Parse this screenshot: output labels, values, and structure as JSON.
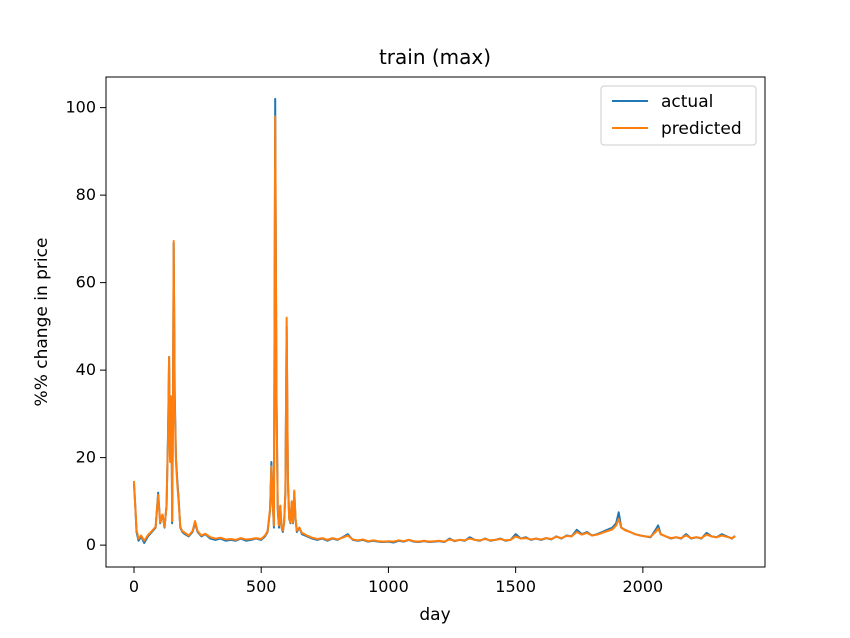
{
  "chart_data": {
    "type": "line",
    "title": "train (max)",
    "xlabel": "day",
    "ylabel": "%% change in price",
    "xlim": [
      -110,
      2480
    ],
    "ylim": [
      -5,
      107
    ],
    "xticks": [
      0,
      500,
      1000,
      1500,
      2000
    ],
    "yticks": [
      0,
      20,
      40,
      60,
      80,
      100
    ],
    "grid": false,
    "legend": "top-right",
    "series": [
      {
        "name": "actual",
        "color": "#1f77b4",
        "points": [
          [
            0,
            14
          ],
          [
            5,
            9
          ],
          [
            10,
            3
          ],
          [
            18,
            1
          ],
          [
            28,
            2
          ],
          [
            40,
            0.5
          ],
          [
            55,
            2
          ],
          [
            70,
            3
          ],
          [
            85,
            4
          ],
          [
            95,
            12
          ],
          [
            103,
            5
          ],
          [
            112,
            7
          ],
          [
            120,
            4
          ],
          [
            128,
            9
          ],
          [
            134,
            26
          ],
          [
            138,
            43
          ],
          [
            142,
            20
          ],
          [
            147,
            34
          ],
          [
            150,
            5
          ],
          [
            153,
            29
          ],
          [
            156,
            69
          ],
          [
            160,
            35
          ],
          [
            165,
            20
          ],
          [
            170,
            15
          ],
          [
            176,
            10
          ],
          [
            182,
            4
          ],
          [
            190,
            3
          ],
          [
            200,
            2.5
          ],
          [
            215,
            2
          ],
          [
            230,
            3
          ],
          [
            240,
            5
          ],
          [
            250,
            3
          ],
          [
            265,
            2
          ],
          [
            280,
            2.5
          ],
          [
            300,
            1.5
          ],
          [
            320,
            1.2
          ],
          [
            340,
            1.5
          ],
          [
            360,
            1
          ],
          [
            380,
            1.2
          ],
          [
            400,
            1
          ],
          [
            420,
            1.5
          ],
          [
            440,
            1
          ],
          [
            460,
            1.2
          ],
          [
            480,
            1.5
          ],
          [
            500,
            1.2
          ],
          [
            515,
            2
          ],
          [
            525,
            3
          ],
          [
            535,
            8
          ],
          [
            540,
            19
          ],
          [
            545,
            10
          ],
          [
            550,
            4
          ],
          [
            555,
            102
          ],
          [
            560,
            35
          ],
          [
            565,
            8
          ],
          [
            570,
            4
          ],
          [
            575,
            9
          ],
          [
            580,
            4
          ],
          [
            585,
            3
          ],
          [
            590,
            5
          ],
          [
            595,
            12
          ],
          [
            600,
            50
          ],
          [
            605,
            15
          ],
          [
            610,
            6
          ],
          [
            615,
            5
          ],
          [
            620,
            10
          ],
          [
            625,
            5
          ],
          [
            630,
            12
          ],
          [
            635,
            6
          ],
          [
            640,
            3
          ],
          [
            650,
            4
          ],
          [
            660,
            2.5
          ],
          [
            680,
            2
          ],
          [
            700,
            1.5
          ],
          [
            720,
            1.2
          ],
          [
            740,
            1.5
          ],
          [
            760,
            1
          ],
          [
            780,
            1.5
          ],
          [
            800,
            1.2
          ],
          [
            820,
            1.8
          ],
          [
            840,
            2.5
          ],
          [
            860,
            1.2
          ],
          [
            880,
            1
          ],
          [
            900,
            1.2
          ],
          [
            920,
            0.8
          ],
          [
            940,
            1
          ],
          [
            960,
            0.8
          ],
          [
            980,
            0.7
          ],
          [
            1000,
            0.8
          ],
          [
            1020,
            0.6
          ],
          [
            1040,
            1
          ],
          [
            1060,
            0.8
          ],
          [
            1080,
            1.2
          ],
          [
            1100,
            0.8
          ],
          [
            1120,
            0.7
          ],
          [
            1140,
            0.9
          ],
          [
            1160,
            0.7
          ],
          [
            1180,
            0.8
          ],
          [
            1200,
            0.9
          ],
          [
            1220,
            0.7
          ],
          [
            1240,
            1.5
          ],
          [
            1260,
            0.9
          ],
          [
            1280,
            1.2
          ],
          [
            1300,
            1
          ],
          [
            1320,
            1.8
          ],
          [
            1340,
            1.2
          ],
          [
            1360,
            1
          ],
          [
            1380,
            1.5
          ],
          [
            1400,
            1
          ],
          [
            1420,
            1.2
          ],
          [
            1440,
            1.5
          ],
          [
            1460,
            1
          ],
          [
            1480,
            1.2
          ],
          [
            1500,
            2.5
          ],
          [
            1520,
            1.5
          ],
          [
            1540,
            1.8
          ],
          [
            1560,
            1.2
          ],
          [
            1580,
            1.5
          ],
          [
            1600,
            1.2
          ],
          [
            1620,
            1.6
          ],
          [
            1640,
            1.3
          ],
          [
            1660,
            2
          ],
          [
            1680,
            1.5
          ],
          [
            1700,
            2.2
          ],
          [
            1720,
            2
          ],
          [
            1740,
            3.5
          ],
          [
            1760,
            2.5
          ],
          [
            1780,
            3
          ],
          [
            1800,
            2.2
          ],
          [
            1820,
            2.5
          ],
          [
            1840,
            3
          ],
          [
            1860,
            3.5
          ],
          [
            1880,
            4
          ],
          [
            1895,
            5
          ],
          [
            1905,
            7.5
          ],
          [
            1915,
            4
          ],
          [
            1930,
            3.5
          ],
          [
            1950,
            3
          ],
          [
            1970,
            2.5
          ],
          [
            1990,
            2.2
          ],
          [
            2010,
            2
          ],
          [
            2030,
            1.8
          ],
          [
            2050,
            3.5
          ],
          [
            2060,
            4.5
          ],
          [
            2070,
            2.5
          ],
          [
            2090,
            2
          ],
          [
            2110,
            1.5
          ],
          [
            2130,
            1.8
          ],
          [
            2150,
            1.5
          ],
          [
            2170,
            2.5
          ],
          [
            2190,
            1.5
          ],
          [
            2210,
            1.8
          ],
          [
            2230,
            1.5
          ],
          [
            2250,
            2.8
          ],
          [
            2270,
            2
          ],
          [
            2290,
            1.8
          ],
          [
            2310,
            2.5
          ],
          [
            2330,
            2
          ],
          [
            2350,
            1.5
          ],
          [
            2360,
            2
          ]
        ]
      },
      {
        "name": "predicted",
        "color": "#ff7f0e",
        "points": [
          [
            0,
            14.5
          ],
          [
            5,
            9
          ],
          [
            10,
            3.5
          ],
          [
            18,
            1.5
          ],
          [
            28,
            2.2
          ],
          [
            40,
            1
          ],
          [
            55,
            2.3
          ],
          [
            70,
            3.2
          ],
          [
            85,
            4.2
          ],
          [
            95,
            11.5
          ],
          [
            103,
            5.2
          ],
          [
            112,
            7
          ],
          [
            120,
            4.2
          ],
          [
            128,
            9
          ],
          [
            134,
            25
          ],
          [
            138,
            43
          ],
          [
            142,
            19
          ],
          [
            147,
            34
          ],
          [
            150,
            5.5
          ],
          [
            153,
            28
          ],
          [
            156,
            69.5
          ],
          [
            160,
            33
          ],
          [
            165,
            19
          ],
          [
            170,
            14
          ],
          [
            176,
            9.5
          ],
          [
            182,
            4.2
          ],
          [
            190,
            3.2
          ],
          [
            200,
            2.8
          ],
          [
            215,
            2.2
          ],
          [
            230,
            3.2
          ],
          [
            240,
            5.5
          ],
          [
            250,
            3.2
          ],
          [
            265,
            2.2
          ],
          [
            280,
            2.6
          ],
          [
            300,
            1.8
          ],
          [
            320,
            1.5
          ],
          [
            340,
            1.7
          ],
          [
            360,
            1.3
          ],
          [
            380,
            1.4
          ],
          [
            400,
            1.2
          ],
          [
            420,
            1.6
          ],
          [
            440,
            1.3
          ],
          [
            460,
            1.4
          ],
          [
            480,
            1.6
          ],
          [
            500,
            1.4
          ],
          [
            515,
            2.2
          ],
          [
            525,
            3.2
          ],
          [
            535,
            8.5
          ],
          [
            540,
            18
          ],
          [
            545,
            10
          ],
          [
            550,
            4.5
          ],
          [
            555,
            98
          ],
          [
            560,
            33
          ],
          [
            565,
            8.5
          ],
          [
            570,
            4.5
          ],
          [
            575,
            9
          ],
          [
            580,
            4.2
          ],
          [
            585,
            3.3
          ],
          [
            590,
            5.2
          ],
          [
            595,
            12
          ],
          [
            600,
            52
          ],
          [
            605,
            14
          ],
          [
            610,
            6
          ],
          [
            615,
            5.2
          ],
          [
            620,
            10
          ],
          [
            625,
            5.2
          ],
          [
            630,
            12.5
          ],
          [
            635,
            6
          ],
          [
            640,
            3.3
          ],
          [
            650,
            4
          ],
          [
            660,
            2.8
          ],
          [
            680,
            2.2
          ],
          [
            700,
            1.7
          ],
          [
            720,
            1.4
          ],
          [
            740,
            1.6
          ],
          [
            760,
            1.2
          ],
          [
            780,
            1.6
          ],
          [
            800,
            1.3
          ],
          [
            820,
            1.7
          ],
          [
            840,
            2.2
          ],
          [
            860,
            1.3
          ],
          [
            880,
            1.1
          ],
          [
            900,
            1.3
          ],
          [
            920,
            0.9
          ],
          [
            940,
            1.1
          ],
          [
            960,
            0.9
          ],
          [
            980,
            0.8
          ],
          [
            1000,
            0.9
          ],
          [
            1020,
            0.8
          ],
          [
            1040,
            1.1
          ],
          [
            1060,
            0.9
          ],
          [
            1080,
            1.2
          ],
          [
            1100,
            0.9
          ],
          [
            1120,
            0.8
          ],
          [
            1140,
            1
          ],
          [
            1160,
            0.8
          ],
          [
            1180,
            0.9
          ],
          [
            1200,
            1
          ],
          [
            1220,
            0.8
          ],
          [
            1240,
            1.3
          ],
          [
            1260,
            1
          ],
          [
            1280,
            1.2
          ],
          [
            1300,
            1.1
          ],
          [
            1320,
            1.5
          ],
          [
            1340,
            1.2
          ],
          [
            1360,
            1.1
          ],
          [
            1380,
            1.4
          ],
          [
            1400,
            1.1
          ],
          [
            1420,
            1.2
          ],
          [
            1440,
            1.4
          ],
          [
            1460,
            1.1
          ],
          [
            1480,
            1.2
          ],
          [
            1500,
            2
          ],
          [
            1520,
            1.5
          ],
          [
            1540,
            1.6
          ],
          [
            1560,
            1.3
          ],
          [
            1580,
            1.5
          ],
          [
            1600,
            1.3
          ],
          [
            1620,
            1.6
          ],
          [
            1640,
            1.4
          ],
          [
            1660,
            1.9
          ],
          [
            1680,
            1.6
          ],
          [
            1700,
            2.1
          ],
          [
            1720,
            2
          ],
          [
            1740,
            3
          ],
          [
            1760,
            2.4
          ],
          [
            1780,
            2.8
          ],
          [
            1800,
            2.2
          ],
          [
            1820,
            2.4
          ],
          [
            1840,
            2.8
          ],
          [
            1860,
            3.2
          ],
          [
            1880,
            3.6
          ],
          [
            1895,
            4.5
          ],
          [
            1905,
            6
          ],
          [
            1915,
            4
          ],
          [
            1930,
            3.4
          ],
          [
            1950,
            3
          ],
          [
            1970,
            2.5
          ],
          [
            1990,
            2.2
          ],
          [
            2010,
            2
          ],
          [
            2030,
            1.9
          ],
          [
            2050,
            3
          ],
          [
            2060,
            3.8
          ],
          [
            2070,
            2.5
          ],
          [
            2090,
            2
          ],
          [
            2110,
            1.6
          ],
          [
            2130,
            1.8
          ],
          [
            2150,
            1.6
          ],
          [
            2170,
            2.2
          ],
          [
            2190,
            1.6
          ],
          [
            2210,
            1.8
          ],
          [
            2230,
            1.6
          ],
          [
            2250,
            2.4
          ],
          [
            2270,
            2
          ],
          [
            2290,
            1.8
          ],
          [
            2310,
            2.2
          ],
          [
            2330,
            1.9
          ],
          [
            2350,
            1.6
          ],
          [
            2360,
            1.9
          ]
        ]
      }
    ]
  }
}
